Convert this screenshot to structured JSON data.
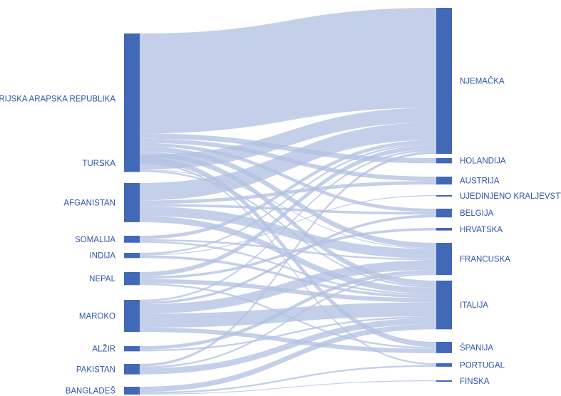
{
  "chart_data": {
    "type": "sankey",
    "colors": {
      "node": "#4169b8",
      "link": "#b3c1e3"
    },
    "sources": [
      {
        "id": "sy",
        "label": "SIRIJSKA ARAPSKA REPUBLIKA"
      },
      {
        "id": "tr",
        "label": "TURSKA"
      },
      {
        "id": "af",
        "label": "AFGANISTAN"
      },
      {
        "id": "so",
        "label": "SOMALIJA"
      },
      {
        "id": "in",
        "label": "INDIJA"
      },
      {
        "id": "np",
        "label": "NEPAL"
      },
      {
        "id": "ma",
        "label": "MAROKO"
      },
      {
        "id": "dz",
        "label": "ALŽIR"
      },
      {
        "id": "pk",
        "label": "PAKISTAN"
      },
      {
        "id": "bd",
        "label": "BANGLADEŠ"
      }
    ],
    "targets": [
      {
        "id": "de",
        "label": "NJEMAČKA"
      },
      {
        "id": "nl",
        "label": "HOLANDIJA"
      },
      {
        "id": "at",
        "label": "AUSTRIJA"
      },
      {
        "id": "uk",
        "label": "UJEDINJENO KRALJEVSTVO"
      },
      {
        "id": "be",
        "label": "BELGIJA"
      },
      {
        "id": "hr",
        "label": "HRVATSKA"
      },
      {
        "id": "fr",
        "label": "FRANCUSKA"
      },
      {
        "id": "it",
        "label": "ITALIJA"
      },
      {
        "id": "es",
        "label": "ŠPANIJA"
      },
      {
        "id": "pt",
        "label": "PORTUGAL"
      },
      {
        "id": "fi",
        "label": "FINSKA"
      }
    ],
    "links": [
      {
        "source": "sy",
        "target": "de",
        "value": 115
      },
      {
        "source": "sy",
        "target": "nl",
        "value": 6
      },
      {
        "source": "sy",
        "target": "at",
        "value": 5
      },
      {
        "source": "sy",
        "target": "be",
        "value": 4
      },
      {
        "source": "sy",
        "target": "fr",
        "value": 6
      },
      {
        "source": "sy",
        "target": "it",
        "value": 6
      },
      {
        "source": "sy",
        "target": "es",
        "value": 6
      },
      {
        "source": "sy",
        "target": "pt",
        "value": 2
      },
      {
        "source": "tr",
        "target": "de",
        "value": 17
      },
      {
        "source": "tr",
        "target": "it",
        "value": 2
      },
      {
        "source": "tr",
        "target": "fr",
        "value": 1
      },
      {
        "source": "af",
        "target": "de",
        "value": 20
      },
      {
        "source": "af",
        "target": "at",
        "value": 4
      },
      {
        "source": "af",
        "target": "fr",
        "value": 11
      },
      {
        "source": "af",
        "target": "it",
        "value": 7
      },
      {
        "source": "af",
        "target": "be",
        "value": 3
      },
      {
        "source": "so",
        "target": "de",
        "value": 4
      },
      {
        "source": "so",
        "target": "it",
        "value": 2
      },
      {
        "source": "so",
        "target": "fr",
        "value": 2
      },
      {
        "source": "in",
        "target": "it",
        "value": 3
      },
      {
        "source": "in",
        "target": "uk",
        "value": 1
      },
      {
        "source": "in",
        "target": "de",
        "value": 2
      },
      {
        "source": "np",
        "target": "de",
        "value": 5
      },
      {
        "source": "np",
        "target": "it",
        "value": 5
      },
      {
        "source": "np",
        "target": "hr",
        "value": 3
      },
      {
        "source": "np",
        "target": "es",
        "value": 2
      },
      {
        "source": "ma",
        "target": "it",
        "value": 16
      },
      {
        "source": "ma",
        "target": "fr",
        "value": 11
      },
      {
        "source": "ma",
        "target": "es",
        "value": 5
      },
      {
        "source": "ma",
        "target": "be",
        "value": 3
      },
      {
        "source": "ma",
        "target": "de",
        "value": 2
      },
      {
        "source": "dz",
        "target": "fr",
        "value": 4
      },
      {
        "source": "dz",
        "target": "it",
        "value": 2
      },
      {
        "source": "pk",
        "target": "it",
        "value": 7
      },
      {
        "source": "pk",
        "target": "de",
        "value": 3
      },
      {
        "source": "pk",
        "target": "fr",
        "value": 2
      },
      {
        "source": "bd",
        "target": "it",
        "value": 6
      },
      {
        "source": "bd",
        "target": "pt",
        "value": 2
      },
      {
        "source": "bd",
        "target": "fi",
        "value": 1
      }
    ]
  }
}
